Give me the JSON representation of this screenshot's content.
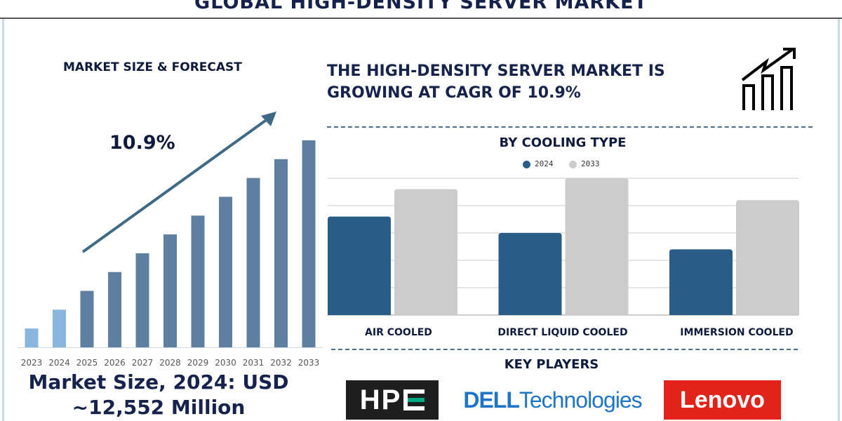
{
  "title": "GLOBAL HIGH-DENSITY SERVER MARKET",
  "left": {
    "heading": "MARKET SIZE & FORECAST",
    "cagr_label": "10.9%",
    "market_size_line1": "Market Size, 2024: USD",
    "market_size_line2": "~12,552 Million"
  },
  "headline": [
    "THE HIGH-DENSITY SERVER MARKET IS",
    "GROWING AT CAGR OF 10.9%"
  ],
  "icons": {
    "growth": "bar-chart-growth-arrow-icon"
  },
  "key_players": {
    "heading": "KEY PLAYERS",
    "logos": [
      "HPE",
      "DELL Technologies",
      "Lenovo"
    ]
  },
  "colors": {
    "navy": "#16244d",
    "bar_light": "#8ab6dd",
    "bar_dark": "#5e7f9f",
    "series_2024": "#2a5c88",
    "series_2033": "#cccccc",
    "hpe_bg": "#1e1e1e",
    "hpe_green": "#01a982",
    "dell_blue": "#1e75c6",
    "lenovo_red": "#e2231a"
  },
  "chart_data": [
    {
      "type": "bar",
      "title": "MARKET SIZE & FORECAST",
      "categories": [
        "2023",
        "2024",
        "2025",
        "2026",
        "2027",
        "2028",
        "2029",
        "2030",
        "2031",
        "2032",
        "2033"
      ],
      "values": [
        1,
        2,
        3,
        4,
        5,
        6,
        7,
        8,
        9,
        10,
        11
      ],
      "annotation": "10.9%",
      "grid": false
    },
    {
      "type": "bar",
      "title": "BY COOLING TYPE",
      "categories": [
        "AIR COOLED",
        "DIRECT LIQUID COOLED",
        "IMMERSION COOLED"
      ],
      "series": [
        {
          "name": "2024",
          "values": [
            3.6,
            3.0,
            2.4
          ]
        },
        {
          "name": "2033",
          "values": [
            4.6,
            5.0,
            4.2
          ]
        }
      ],
      "ylim": [
        0,
        5
      ],
      "grid": true,
      "legend": "top-center"
    }
  ]
}
